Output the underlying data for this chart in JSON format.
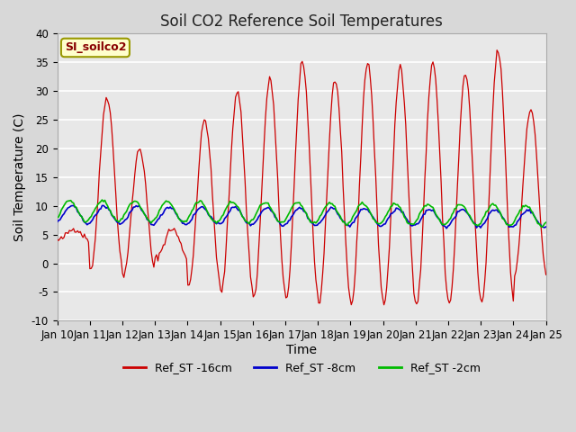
{
  "title": "Soil CO2 Reference Soil Temperatures",
  "xlabel": "Time",
  "ylabel": "Soil Temperature (C)",
  "ylim": [
    -10,
    40
  ],
  "x_tick_labels": [
    "Jan 10",
    "Jan 11",
    "Jan 12",
    "Jan 13",
    "Jan 14",
    "Jan 15",
    "Jan 16",
    "Jan 17",
    "Jan 18",
    "Jan 19",
    "Jan 20",
    "Jan 21",
    "Jan 22",
    "Jan 23",
    "Jan 24",
    "Jan 25"
  ],
  "figure_bg_color": "#d8d8d8",
  "plot_bg_color": "#e8e8e8",
  "grid_color": "#ffffff",
  "label_box_text": "SI_soilco2",
  "label_box_bg": "#ffffcc",
  "label_box_border": "#999900",
  "legend_entries": [
    "Ref_ST -16cm",
    "Ref_ST -8cm",
    "Ref_ST -2cm"
  ],
  "line_colors_plot": [
    "#cc0000",
    "#0000cc",
    "#00bb00"
  ],
  "line_colors_legend": [
    "#cc0000",
    "#0000cc",
    "#00bb00"
  ],
  "title_fontsize": 12,
  "axis_label_fontsize": 10,
  "tick_fontsize": 8.5,
  "legend_fontsize": 9
}
